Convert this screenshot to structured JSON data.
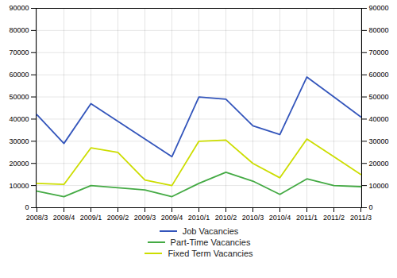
{
  "chart_data": {
    "type": "line",
    "categories": [
      "2008/3",
      "2008/4",
      "2009/1",
      "2009/2",
      "2009/3",
      "2009/4",
      "2010/1",
      "2010/2",
      "2010/3",
      "2010/4",
      "2011/1",
      "2011/2",
      "2011/3"
    ],
    "series": [
      {
        "name": "Job Vacancies",
        "color": "#3355bb",
        "values": [
          42000,
          29000,
          47000,
          39000,
          31000,
          23000,
          50000,
          49000,
          37000,
          33000,
          59000,
          50000,
          41000
        ]
      },
      {
        "name": "Part-Time Vacancies",
        "color": "#44aa44",
        "values": [
          7500,
          5000,
          10000,
          9000,
          8000,
          5000,
          11000,
          16000,
          12000,
          6000,
          13000,
          10000,
          9500
        ]
      },
      {
        "name": "Fixed Term Vacancies",
        "color": "#ccdd00",
        "values": [
          11000,
          10500,
          27000,
          25000,
          12500,
          10000,
          30000,
          30500,
          20000,
          13500,
          31000,
          23000,
          15000
        ]
      }
    ],
    "ylim": [
      0,
      90000
    ],
    "yticks": [
      0,
      10000,
      20000,
      30000,
      40000,
      50000,
      60000,
      70000,
      80000,
      90000
    ],
    "grid": true,
    "legend": "bottom"
  }
}
